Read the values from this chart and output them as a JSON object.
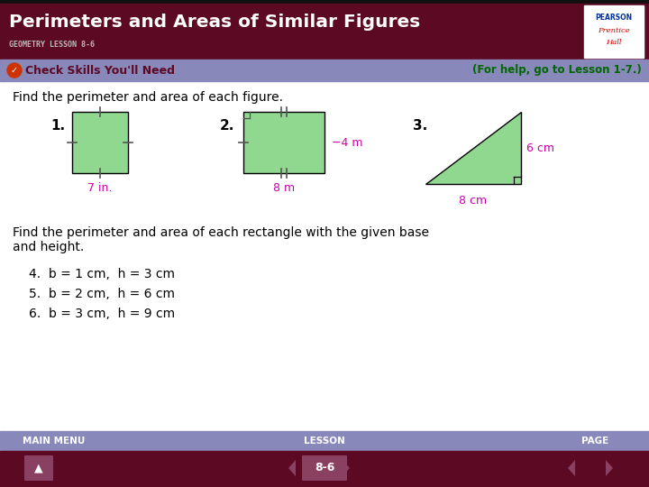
{
  "title": "Perimeters and Areas of Similar Figures",
  "subtitle": "GEOMETRY LESSON 8-6",
  "header_bg": "#5c0a24",
  "header_text_color": "#ffffff",
  "subtitle_color": "#bbbbbb",
  "banner_bg": "#8888bb",
  "banner_text": "Check Skills You'll Need",
  "banner_right_text": "(For help, go to Lesson 1-7.)",
  "banner_text_color": "#5c0a24",
  "banner_right_color": "#006600",
  "footer_top_bg": "#8888bb",
  "footer_bot_bg": "#5c0a24",
  "main_bg": "#ffffff",
  "body_text_color": "#000000",
  "shape_fill": "#90d890",
  "shape_edge": "#000000",
  "dim_color": "#cc00aa",
  "tick_color": "#555555",
  "find_text1": "Find the perimeter and area of each figure.",
  "find_text2a": "Find the perimeter and area of each rectangle with the given base",
  "find_text2b": "and height.",
  "items": [
    "4.  b = 1 cm,  h = 3 cm",
    "5.  b = 2 cm,  h = 6 cm",
    "6.  b = 3 cm,  h = 9 cm"
  ],
  "page_label": "8-6",
  "footer_labels": [
    "MAIN MENU",
    "LESSON",
    "PAGE"
  ],
  "pearson_box_color": "#ffffff",
  "pearson_text": "PEARSON",
  "prentice_text": "Prentice",
  "hall_text": "Hall",
  "check_icon_color": "#cc3300"
}
